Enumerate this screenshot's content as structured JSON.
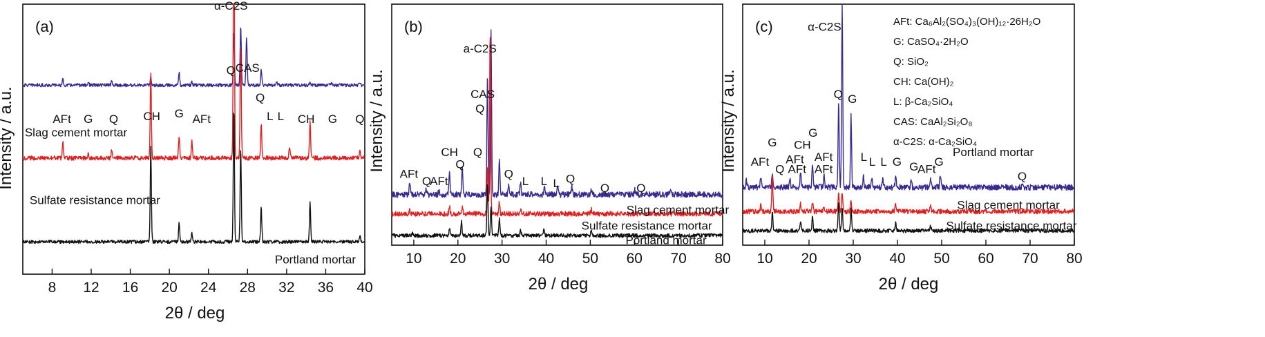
{
  "colors": {
    "slag": "#3a2a8f",
    "sulfate": "#e02020",
    "portland": "#111111",
    "highlight": "#e02020"
  },
  "chart_data": [
    {
      "type": "line",
      "panel_label": "(a)",
      "xlabel": "2θ / deg",
      "ylabel": "Intensity / a.u.",
      "xlim": [
        5,
        40
      ],
      "xticks": [
        8,
        12,
        16,
        20,
        24,
        28,
        32,
        36,
        40
      ],
      "tick_labels": [
        "8",
        "12",
        "16",
        "20",
        "24",
        "28",
        "32",
        "36",
        "40"
      ],
      "series": [
        {
          "name": "Slag cement mortar",
          "color": "#3a2a8f",
          "base": 0.7,
          "noise": 0.006,
          "peaks": [
            [
              9.1,
              0.02
            ],
            [
              11.7,
              0.01
            ],
            [
              14.1,
              0.015
            ],
            [
              18.1,
              0.03
            ],
            [
              21.0,
              0.05
            ],
            [
              22.3,
              0.01
            ],
            [
              26.6,
              0.2
            ],
            [
              27.3,
              0.22
            ],
            [
              27.9,
              0.18
            ],
            [
              29.4,
              0.06
            ],
            [
              31.0,
              0.01
            ],
            [
              34.4,
              0.01
            ],
            [
              36.6,
              0.01
            ],
            [
              39.5,
              0.01
            ]
          ]
        },
        {
          "name": "Sulfate resistance mortar",
          "color": "#e02020",
          "base": 0.43,
          "noise": 0.008,
          "peaks": [
            [
              9.1,
              0.06
            ],
            [
              11.7,
              0.02
            ],
            [
              14.1,
              0.03
            ],
            [
              18.1,
              0.32
            ],
            [
              21.0,
              0.08
            ],
            [
              22.3,
              0.06
            ],
            [
              26.6,
              0.95
            ],
            [
              27.3,
              0.42
            ],
            [
              29.4,
              0.13
            ],
            [
              32.3,
              0.04
            ],
            [
              34.4,
              0.13
            ],
            [
              39.5,
              0.03
            ]
          ]
        },
        {
          "name": "Portland mortar",
          "color": "#111111",
          "base": 0.12,
          "noise": 0.006,
          "peaks": [
            [
              18.1,
              0.35
            ],
            [
              21.0,
              0.07
            ],
            [
              22.3,
              0.03
            ],
            [
              26.6,
              0.5
            ],
            [
              27.3,
              0.35
            ],
            [
              29.4,
              0.13
            ],
            [
              34.4,
              0.15
            ],
            [
              39.5,
              0.02
            ]
          ]
        }
      ],
      "annotations": [
        {
          "text": "α-C2S",
          "x": 26.3,
          "y": 0.98
        },
        {
          "text": "Q",
          "x": 26.3,
          "y": 0.74
        },
        {
          "text": "CAS",
          "x": 28.0,
          "y": 0.75
        },
        {
          "text": "Q",
          "x": 29.3,
          "y": 0.64
        },
        {
          "text": "AFt",
          "x": 9.0,
          "y": 0.56
        },
        {
          "text": "G",
          "x": 11.7,
          "y": 0.56
        },
        {
          "text": "Q",
          "x": 14.3,
          "y": 0.56
        },
        {
          "text": "CH",
          "x": 18.2,
          "y": 0.57
        },
        {
          "text": "G",
          "x": 21.0,
          "y": 0.58
        },
        {
          "text": "AFt",
          "x": 23.3,
          "y": 0.56
        },
        {
          "text": "L",
          "x": 30.3,
          "y": 0.57
        },
        {
          "text": "L",
          "x": 31.4,
          "y": 0.57
        },
        {
          "text": "CH",
          "x": 34.0,
          "y": 0.56
        },
        {
          "text": "G",
          "x": 36.7,
          "y": 0.56
        },
        {
          "text": "Q",
          "x": 39.5,
          "y": 0.56
        }
      ],
      "series_labels": [
        {
          "text": "Slag cement mortar",
          "x": 5.2,
          "y": 0.51
        },
        {
          "text": "Sulfate resistance mortar",
          "x": 5.7,
          "y": 0.26
        },
        {
          "text": "Portland mortar",
          "x": 30.8,
          "y": 0.04
        }
      ]
    },
    {
      "type": "line",
      "panel_label": "(b)",
      "xlabel": "2θ / deg",
      "ylabel": "Intensity / a.u.",
      "xlim": [
        5,
        80
      ],
      "xticks": [
        10,
        20,
        30,
        40,
        50,
        60,
        70,
        80
      ],
      "tick_labels": [
        "10",
        "20",
        "30",
        "40",
        "50",
        "60",
        "70",
        "80"
      ],
      "series": [
        {
          "name": "Slag cement mortar",
          "color": "#3a2a8f",
          "base": 0.21,
          "noise": 0.012,
          "peaks": [
            [
              9.1,
              0.05
            ],
            [
              12.8,
              0.02
            ],
            [
              15.7,
              0.02
            ],
            [
              18.1,
              0.1
            ],
            [
              21.0,
              0.12
            ],
            [
              26.7,
              0.5
            ],
            [
              27.5,
              0.68
            ],
            [
              29.4,
              0.15
            ],
            [
              31.5,
              0.04
            ],
            [
              34.2,
              0.05
            ],
            [
              39.6,
              0.03
            ],
            [
              42.6,
              0.03
            ],
            [
              45.8,
              0.03
            ],
            [
              50.2,
              0.02
            ],
            [
              60.1,
              0.02
            ],
            [
              68.2,
              0.02
            ]
          ]
        },
        {
          "name": "Sulfate resistance mortar",
          "color": "#e02020",
          "base": 0.13,
          "noise": 0.01,
          "peaks": [
            [
              9.1,
              0.02
            ],
            [
              18.1,
              0.03
            ],
            [
              21.0,
              0.03
            ],
            [
              26.7,
              0.2
            ],
            [
              27.3,
              0.75
            ],
            [
              29.4,
              0.05
            ],
            [
              34.2,
              0.02
            ],
            [
              50.2,
              0.02
            ]
          ]
        },
        {
          "name": "Portland mortar",
          "color": "#111111",
          "base": 0.04,
          "noise": 0.008,
          "peaks": [
            [
              9.8,
              0.01
            ],
            [
              18.1,
              0.03
            ],
            [
              20.8,
              0.06
            ],
            [
              26.7,
              0.22
            ],
            [
              27.5,
              0.12
            ],
            [
              29.4,
              0.07
            ],
            [
              34.2,
              0.02
            ],
            [
              39.5,
              0.03
            ],
            [
              50.2,
              0.02
            ]
          ]
        }
      ],
      "annotations": [
        {
          "text": "a-C2S",
          "x": 25.0,
          "y": 0.8
        },
        {
          "text": "CAS",
          "x": 25.6,
          "y": 0.61
        },
        {
          "text": "Q",
          "x": 25.0,
          "y": 0.55
        },
        {
          "text": "CH",
          "x": 18.1,
          "y": 0.37
        },
        {
          "text": "Q",
          "x": 20.5,
          "y": 0.32
        },
        {
          "text": "Q",
          "x": 24.5,
          "y": 0.37
        },
        {
          "text": "AFt",
          "x": 8.9,
          "y": 0.28
        },
        {
          "text": "Q",
          "x": 12.9,
          "y": 0.25
        },
        {
          "text": "AFt",
          "x": 15.7,
          "y": 0.25
        },
        {
          "text": "Q",
          "x": 31.5,
          "y": 0.28
        },
        {
          "text": "L",
          "x": 35.3,
          "y": 0.25
        },
        {
          "text": "L",
          "x": 39.5,
          "y": 0.25
        },
        {
          "text": "L",
          "x": 42.3,
          "y": 0.24
        },
        {
          "text": "Q",
          "x": 45.5,
          "y": 0.26
        },
        {
          "text": "Q",
          "x": 53.3,
          "y": 0.22
        },
        {
          "text": "Q",
          "x": 61.5,
          "y": 0.22
        }
      ],
      "series_labels": [
        {
          "text": "Slag cement mortar",
          "x": 58.2,
          "y": 0.13
        },
        {
          "text": "Sulfate resistance mortar",
          "x": 48.0,
          "y": 0.064
        },
        {
          "text": "Portland mortar",
          "x": 58.0,
          "y": 0.005
        }
      ]
    },
    {
      "type": "line",
      "panel_label": "(c)",
      "xlabel": "2θ / deg",
      "ylabel": "Intensity / a.u.",
      "xlim": [
        5,
        80
      ],
      "xticks": [
        10,
        20,
        30,
        40,
        50,
        60,
        70,
        80
      ],
      "tick_labels": [
        "10",
        "20",
        "30",
        "40",
        "50",
        "60",
        "70",
        "80"
      ],
      "legend": [
        "AFt: Ca₆Al₂(SO₄)₃(OH)₁₂·26H₂O",
        "G: CaSO₄·2H₂O",
        "Q: SiO₂",
        "CH: Ca(OH)₂",
        "L: β-Ca₂SiO₄",
        "CAS: CaAl₂Si₂O₈",
        "α-C2S: α-Ca₂SiO₄"
      ],
      "series": [
        {
          "name": "Portland mortar",
          "color": "#3a2a8f",
          "base": 0.24,
          "noise": 0.012,
          "peaks": [
            [
              5.8,
              0.03
            ],
            [
              9.1,
              0.04
            ],
            [
              11.7,
              0.06
            ],
            [
              15.7,
              0.03
            ],
            [
              18.1,
              0.07
            ],
            [
              20.8,
              0.1
            ],
            [
              23.4,
              0.05
            ],
            [
              26.7,
              0.36
            ],
            [
              27.5,
              0.76
            ],
            [
              29.5,
              0.3
            ],
            [
              32.3,
              0.05
            ],
            [
              34.2,
              0.04
            ],
            [
              36.7,
              0.03
            ],
            [
              39.6,
              0.05
            ],
            [
              43.1,
              0.03
            ],
            [
              47.5,
              0.04
            ],
            [
              49.7,
              0.05
            ],
            [
              68.2,
              0.01
            ]
          ]
        },
        {
          "name": "Slag cement mortar",
          "color": "#e02020",
          "base": 0.14,
          "noise": 0.01,
          "peaks": [
            [
              9.1,
              0.03
            ],
            [
              11.7,
              0.15
            ],
            [
              18.1,
              0.03
            ],
            [
              20.8,
              0.04
            ],
            [
              23.4,
              0.02
            ],
            [
              26.7,
              0.08
            ],
            [
              27.5,
              0.08
            ],
            [
              29.5,
              0.04
            ],
            [
              39.6,
              0.03
            ],
            [
              47.5,
              0.02
            ]
          ]
        },
        {
          "name": "Sulfate resistance mortar",
          "color": "#111111",
          "base": 0.06,
          "noise": 0.008,
          "peaks": [
            [
              11.7,
              0.08
            ],
            [
              18.1,
              0.03
            ],
            [
              20.8,
              0.06
            ],
            [
              26.7,
              0.12
            ],
            [
              27.5,
              0.1
            ],
            [
              29.5,
              0.09
            ],
            [
              39.6,
              0.03
            ],
            [
              47.5,
              0.02
            ],
            [
              68.2,
              0.01
            ]
          ]
        }
      ],
      "annotations": [
        {
          "text": "α-C2S",
          "x": 23.5,
          "y": 0.89
        },
        {
          "text": "Q",
          "x": 26.6,
          "y": 0.61
        },
        {
          "text": "G",
          "x": 29.8,
          "y": 0.59
        },
        {
          "text": "G",
          "x": 11.7,
          "y": 0.41
        },
        {
          "text": "G",
          "x": 20.9,
          "y": 0.45
        },
        {
          "text": "CH",
          "x": 18.5,
          "y": 0.4
        },
        {
          "text": "AFt",
          "x": 8.9,
          "y": 0.33
        },
        {
          "text": "Q",
          "x": 13.4,
          "y": 0.3
        },
        {
          "text": "AFt",
          "x": 16.8,
          "y": 0.34
        },
        {
          "text": "AFt",
          "x": 17.3,
          "y": 0.3
        },
        {
          "text": "AFt",
          "x": 23.3,
          "y": 0.35
        },
        {
          "text": "AFt",
          "x": 23.3,
          "y": 0.3
        },
        {
          "text": "L",
          "x": 32.4,
          "y": 0.35
        },
        {
          "text": "L",
          "x": 34.3,
          "y": 0.33
        },
        {
          "text": "L",
          "x": 36.9,
          "y": 0.33
        },
        {
          "text": "G",
          "x": 39.9,
          "y": 0.33
        },
        {
          "text": "G",
          "x": 43.7,
          "y": 0.31
        },
        {
          "text": "AFt",
          "x": 46.6,
          "y": 0.3
        },
        {
          "text": "G",
          "x": 49.4,
          "y": 0.33
        },
        {
          "text": "Q",
          "x": 68.2,
          "y": 0.27
        }
      ],
      "series_labels": [
        {
          "text": "Portland mortar",
          "x": 52.5,
          "y": 0.37
        },
        {
          "text": "Slag cement mortar",
          "x": 53.5,
          "y": 0.15
        },
        {
          "text": "Sulfate resistance mortar",
          "x": 51.0,
          "y": 0.065
        }
      ]
    }
  ]
}
